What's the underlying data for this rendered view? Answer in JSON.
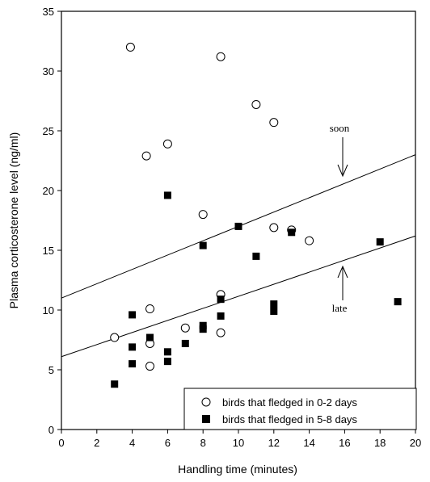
{
  "chart_data": {
    "type": "scatter",
    "xlabel": "Handling time (minutes)",
    "ylabel": "Plasma corticosterone level (ng/ml)",
    "xlim": [
      0,
      20
    ],
    "ylim": [
      0,
      35
    ],
    "xticks": [
      0,
      2,
      4,
      6,
      8,
      10,
      12,
      14,
      16,
      18,
      20
    ],
    "yticks": [
      0,
      5,
      10,
      15,
      20,
      25,
      30,
      35
    ],
    "grid": false,
    "legend_position": "bottom-right",
    "series": [
      {
        "name": "birds that fledged in 0-2 days",
        "marker": "open-circle",
        "points": [
          [
            3,
            7.7
          ],
          [
            3.9,
            32
          ],
          [
            4.8,
            22.9
          ],
          [
            5,
            10.1
          ],
          [
            5,
            7.2
          ],
          [
            5,
            5.3
          ],
          [
            6,
            23.9
          ],
          [
            7,
            8.5
          ],
          [
            8,
            18
          ],
          [
            9,
            31.2
          ],
          [
            9,
            11.3
          ],
          [
            9,
            8.1
          ],
          [
            11,
            27.2
          ],
          [
            12,
            25.7
          ],
          [
            12,
            16.9
          ],
          [
            13,
            16.7
          ],
          [
            14,
            15.8
          ]
        ]
      },
      {
        "name": "birds that fledged in 5-8 days",
        "marker": "filled-square",
        "points": [
          [
            3,
            3.8
          ],
          [
            4,
            9.6
          ],
          [
            4,
            6.9
          ],
          [
            4,
            5.5
          ],
          [
            5,
            7.7
          ],
          [
            6,
            19.6
          ],
          [
            6,
            6.5
          ],
          [
            6,
            5.7
          ],
          [
            7,
            7.2
          ],
          [
            8,
            15.4
          ],
          [
            8,
            8.7
          ],
          [
            8,
            8.4
          ],
          [
            9,
            10.9
          ],
          [
            9,
            9.5
          ],
          [
            10,
            17
          ],
          [
            11,
            14.5
          ],
          [
            12,
            10.5
          ],
          [
            12,
            9.9
          ],
          [
            13,
            16.5
          ],
          [
            18,
            15.7
          ],
          [
            19,
            10.7
          ]
        ]
      }
    ],
    "trendlines": [
      {
        "label": "soon",
        "intercept": 11.0,
        "slope": 0.6
      },
      {
        "label": "late",
        "intercept": 6.1,
        "slope": 0.505
      }
    ],
    "annotations": [
      {
        "text": "soon",
        "arrow": "down",
        "x": 16
      },
      {
        "text": "late",
        "arrow": "up",
        "x": 16
      }
    ]
  }
}
